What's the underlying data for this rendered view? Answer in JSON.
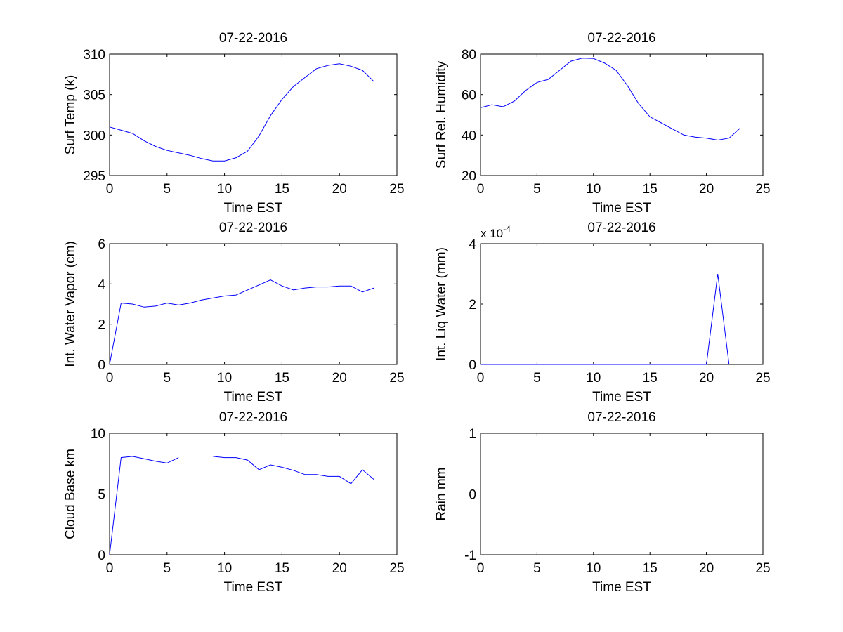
{
  "figure": {
    "background": "#ffffff",
    "line_color": "#0000ff"
  },
  "chart_data": [
    {
      "type": "line",
      "title": "07-22-2016",
      "xlabel": "Time EST",
      "ylabel": "Surf Temp (k)",
      "xlim": [
        0,
        25
      ],
      "ylim": [
        295,
        310
      ],
      "xticks": [
        "0",
        "5",
        "10",
        "15",
        "20",
        "25"
      ],
      "yticks": [
        "295",
        "300",
        "305",
        "310"
      ],
      "ytick_values": [
        295,
        300,
        305,
        310
      ],
      "x": [
        0,
        1,
        2,
        3,
        4,
        5,
        6,
        7,
        8,
        9,
        10,
        11,
        12,
        13,
        14,
        15,
        16,
        17,
        18,
        19,
        20,
        21,
        22,
        23
      ],
      "y": [
        301.0,
        300.6,
        300.2,
        299.3,
        298.6,
        298.1,
        297.8,
        297.5,
        297.1,
        296.8,
        296.8,
        297.2,
        298.0,
        299.9,
        302.4,
        304.4,
        306.0,
        307.1,
        308.2,
        308.6,
        308.8,
        308.5,
        308.0,
        306.6
      ]
    },
    {
      "type": "line",
      "title": "07-22-2016",
      "xlabel": "Time EST",
      "ylabel": "Surf Rel. Humidity",
      "xlim": [
        0,
        25
      ],
      "ylim": [
        20,
        80
      ],
      "xticks": [
        "0",
        "5",
        "10",
        "15",
        "20",
        "25"
      ],
      "yticks": [
        "20",
        "40",
        "60",
        "80"
      ],
      "ytick_values": [
        20,
        40,
        60,
        80
      ],
      "x": [
        0,
        1,
        2,
        3,
        4,
        5,
        6,
        7,
        8,
        9,
        10,
        11,
        12,
        13,
        14,
        15,
        16,
        17,
        18,
        19,
        20,
        21,
        22,
        23
      ],
      "y": [
        53.5,
        55.0,
        54.0,
        56.8,
        62.0,
        66.0,
        67.5,
        72.0,
        76.5,
        78.0,
        77.8,
        75.5,
        72.0,
        64.5,
        55.5,
        49.0,
        46.0,
        43.0,
        40.0,
        39.0,
        38.5,
        37.5,
        38.5,
        43.5
      ]
    },
    {
      "type": "line",
      "title": "07-22-2016",
      "xlabel": "Time EST",
      "ylabel": "Int. Water Vapor (cm)",
      "xlim": [
        0,
        25
      ],
      "ylim": [
        0,
        6
      ],
      "xticks": [
        "0",
        "5",
        "10",
        "15",
        "20",
        "25"
      ],
      "yticks": [
        "0",
        "2",
        "4",
        "6"
      ],
      "ytick_values": [
        0,
        2,
        4,
        6
      ],
      "x": [
        0,
        1,
        2,
        3,
        4,
        5,
        6,
        7,
        8,
        9,
        10,
        11,
        12,
        13,
        14,
        15,
        16,
        17,
        18,
        19,
        20,
        21,
        22,
        23
      ],
      "y": [
        0.0,
        3.05,
        3.0,
        2.85,
        2.9,
        3.05,
        2.95,
        3.05,
        3.2,
        3.3,
        3.4,
        3.45,
        3.7,
        3.95,
        4.2,
        3.9,
        3.7,
        3.8,
        3.85,
        3.85,
        3.9,
        3.9,
        3.6,
        3.8
      ]
    },
    {
      "type": "line",
      "title": "07-22-2016",
      "xlabel": "Time EST",
      "ylabel": "Int. Liq Water (mm)",
      "xlim": [
        0,
        25
      ],
      "ylim": [
        0,
        0.0004
      ],
      "xticks": [
        "0",
        "5",
        "10",
        "15",
        "20",
        "25"
      ],
      "yticks": [
        "0",
        "2",
        "4"
      ],
      "ytick_values": [
        0,
        0.0002,
        0.0004
      ],
      "exponent_label": "x 10",
      "exponent_power": "-4",
      "x": [
        0,
        1,
        2,
        3,
        4,
        5,
        6,
        7,
        8,
        9,
        10,
        11,
        12,
        13,
        14,
        15,
        16,
        17,
        18,
        19,
        20,
        21,
        22
      ],
      "y": [
        0,
        0,
        0,
        0,
        0,
        0,
        0,
        0,
        0,
        0,
        0,
        0,
        0,
        0,
        0,
        0,
        0,
        0,
        0,
        0,
        0,
        0.0003,
        0
      ]
    },
    {
      "type": "line",
      "title": "07-22-2016",
      "xlabel": "Time EST",
      "ylabel": "Cloud Base km",
      "xlim": [
        0,
        25
      ],
      "ylim": [
        0,
        10
      ],
      "xticks": [
        "0",
        "5",
        "10",
        "15",
        "20",
        "25"
      ],
      "yticks": [
        "0",
        "5",
        "10"
      ],
      "ytick_values": [
        0,
        5,
        10
      ],
      "x": [
        0,
        1,
        2,
        3,
        4,
        5,
        6,
        7,
        8,
        9,
        10,
        11,
        12,
        13,
        14,
        15,
        16,
        17,
        18,
        19,
        20,
        21,
        22,
        23
      ],
      "y": [
        0.0,
        8.0,
        8.1,
        7.9,
        7.7,
        7.55,
        8.0,
        null,
        null,
        8.1,
        8.0,
        8.0,
        7.8,
        7.0,
        7.4,
        7.2,
        6.95,
        6.6,
        6.6,
        6.45,
        6.45,
        5.85,
        7.0,
        6.2
      ]
    },
    {
      "type": "line",
      "title": "07-22-2016",
      "xlabel": "Time EST",
      "ylabel": "Rain mm",
      "xlim": [
        0,
        25
      ],
      "ylim": [
        -1,
        1
      ],
      "xticks": [
        "0",
        "5",
        "10",
        "15",
        "20",
        "25"
      ],
      "yticks": [
        "-1",
        "0",
        "1"
      ],
      "ytick_values": [
        -1,
        0,
        1
      ],
      "x": [
        0,
        1,
        2,
        3,
        4,
        5,
        6,
        7,
        8,
        9,
        10,
        11,
        12,
        13,
        14,
        15,
        16,
        17,
        18,
        19,
        20,
        21,
        22,
        23
      ],
      "y": [
        0,
        0,
        0,
        0,
        0,
        0,
        0,
        0,
        0,
        0,
        0,
        0,
        0,
        0,
        0,
        0,
        0,
        0,
        0,
        0,
        0,
        0,
        0,
        0
      ]
    }
  ]
}
